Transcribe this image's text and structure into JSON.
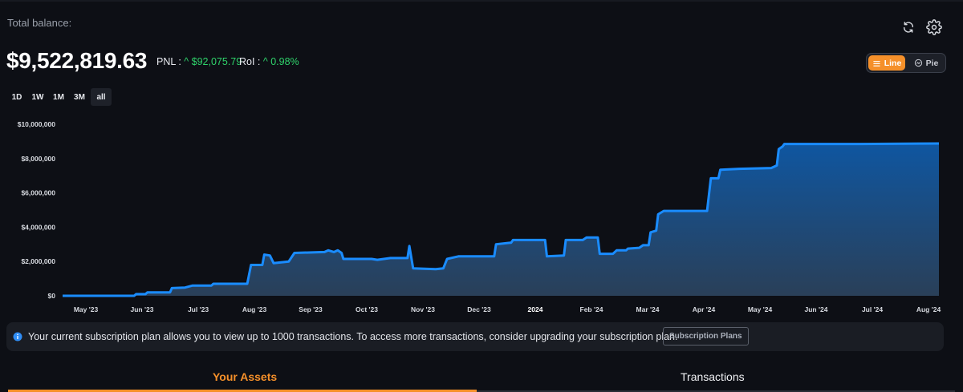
{
  "header": {
    "total_label": "Total balance:",
    "balance": "$9,522,819.63",
    "pnl_label": "PNL :",
    "pnl_value": "^ $92,075.79",
    "roi_label": "RoI :",
    "roi_value": "^ 0.98%"
  },
  "icons": {
    "refresh": "refresh-icon",
    "settings": "gear-icon"
  },
  "view_toggle": {
    "line_label": "Line",
    "pie_label": "Pie",
    "selected": "Line"
  },
  "ranges": {
    "items": [
      "1D",
      "1W",
      "1M",
      "3M",
      "all"
    ],
    "selected": "all"
  },
  "chart_data": {
    "type": "area",
    "y_ticks": [
      "$10,000,000",
      "$8,000,000",
      "$6,000,000",
      "$4,000,000",
      "$2,000,000",
      "$0"
    ],
    "ylim": [
      0,
      10000000
    ],
    "x_ticks": [
      "May '23",
      "Jun '23",
      "Jul '23",
      "Aug '23",
      "Sep '23",
      "Oct '23",
      "Nov '23",
      "Dec '23",
      "2024",
      "Feb '24",
      "Mar '24",
      "Apr '24",
      "May '24",
      "Jun '24",
      "Jul '24",
      "Aug '24"
    ],
    "x_tick_bold": "2024",
    "line_color": "#1a8cff",
    "series": [
      {
        "points": [
          [
            "2023-04-24",
            0
          ],
          [
            "2023-06-01",
            0
          ],
          [
            "2023-06-02",
            100000
          ],
          [
            "2023-06-07",
            100000
          ],
          [
            "2023-06-08",
            200000
          ],
          [
            "2023-06-20",
            200000
          ],
          [
            "2023-06-21",
            450000
          ],
          [
            "2023-06-28",
            480000
          ],
          [
            "2023-07-02",
            600000
          ],
          [
            "2023-07-12",
            600000
          ],
          [
            "2023-07-13",
            700000
          ],
          [
            "2023-07-31",
            700000
          ],
          [
            "2023-08-02",
            1800000
          ],
          [
            "2023-08-08",
            1800000
          ],
          [
            "2023-08-09",
            2400000
          ],
          [
            "2023-08-12",
            2350000
          ],
          [
            "2023-08-14",
            1900000
          ],
          [
            "2023-08-22",
            2000000
          ],
          [
            "2023-08-25",
            2500000
          ],
          [
            "2023-09-10",
            2550000
          ],
          [
            "2023-09-12",
            2650000
          ],
          [
            "2023-09-15",
            2550000
          ],
          [
            "2023-09-17",
            2650000
          ],
          [
            "2023-09-19",
            2500000
          ],
          [
            "2023-09-20",
            2150000
          ],
          [
            "2023-10-05",
            2150000
          ],
          [
            "2023-10-08",
            2100000
          ],
          [
            "2023-10-15",
            2200000
          ],
          [
            "2023-10-24",
            2200000
          ],
          [
            "2023-10-25",
            2900000
          ],
          [
            "2023-10-27",
            1600000
          ],
          [
            "2023-11-08",
            1550000
          ],
          [
            "2023-11-12",
            1600000
          ],
          [
            "2023-11-14",
            2150000
          ],
          [
            "2023-11-20",
            2300000
          ],
          [
            "2023-12-09",
            2300000
          ],
          [
            "2023-12-10",
            3000000
          ],
          [
            "2023-12-18",
            3100000
          ],
          [
            "2023-12-19",
            3250000
          ],
          [
            "2024-01-05",
            3250000
          ],
          [
            "2024-01-06",
            2300000
          ],
          [
            "2024-01-15",
            2350000
          ],
          [
            "2024-01-16",
            3250000
          ],
          [
            "2024-01-25",
            3250000
          ],
          [
            "2024-01-27",
            3400000
          ],
          [
            "2024-02-02",
            3400000
          ],
          [
            "2024-02-03",
            2450000
          ],
          [
            "2024-02-10",
            2450000
          ],
          [
            "2024-02-12",
            2650000
          ],
          [
            "2024-02-17",
            2650000
          ],
          [
            "2024-02-18",
            2750000
          ],
          [
            "2024-02-24",
            2800000
          ],
          [
            "2024-02-26",
            2950000
          ],
          [
            "2024-02-29",
            2950000
          ],
          [
            "2024-03-01",
            3700000
          ],
          [
            "2024-03-04",
            3800000
          ],
          [
            "2024-03-05",
            4750000
          ],
          [
            "2024-03-08",
            4950000
          ],
          [
            "2024-03-31",
            4950000
          ],
          [
            "2024-04-02",
            6850000
          ],
          [
            "2024-04-06",
            6850000
          ],
          [
            "2024-04-07",
            7350000
          ],
          [
            "2024-04-17",
            7400000
          ],
          [
            "2024-05-04",
            7450000
          ],
          [
            "2024-05-07",
            7600000
          ],
          [
            "2024-05-08",
            8550000
          ],
          [
            "2024-05-10",
            8700000
          ],
          [
            "2024-05-11",
            8850000
          ],
          [
            "2024-06-20",
            8850000
          ],
          [
            "2024-08-01",
            8880000
          ]
        ]
      }
    ]
  },
  "notice": {
    "text": "Your current subscription plan allows you to view up to 1000 transactions. To access more transactions, consider upgrading your subscription plan.",
    "button_label": "Subscription Plans"
  },
  "tabs": {
    "assets_label": "Your Assets",
    "transactions_label": "Transactions",
    "selected": "Your Assets"
  },
  "colors": {
    "accent": "#f5902a",
    "positive": "#2fd36b",
    "line": "#1a8cff",
    "background": "#0d0f15"
  }
}
